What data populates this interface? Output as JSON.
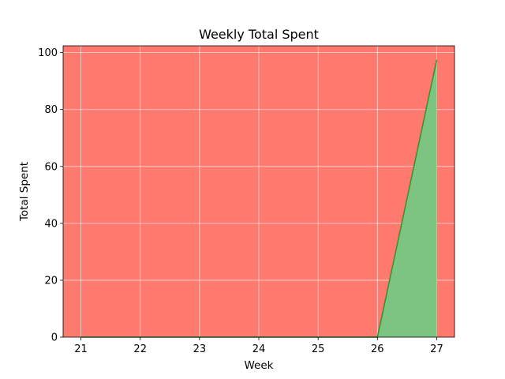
{
  "chart_data": {
    "type": "area",
    "title": "Weekly Total Spent",
    "xlabel": "Week",
    "ylabel": "Total Spent",
    "x": [
      21,
      22,
      23,
      24,
      25,
      26,
      27
    ],
    "series": [
      {
        "values": [
          0,
          0,
          0,
          0,
          0,
          0,
          97.5
        ]
      }
    ],
    "xlim": [
      20.7,
      27.3
    ],
    "ylim": [
      0,
      102.4
    ],
    "xticks": [
      "21",
      "22",
      "23",
      "24",
      "25",
      "26",
      "27"
    ],
    "yticks": [
      "0",
      "20",
      "40",
      "60",
      "80",
      "100"
    ],
    "grid": true,
    "colors": {
      "background": "#fe7a6e",
      "fill": "#7dc382",
      "line": "#2f9a2f"
    }
  }
}
